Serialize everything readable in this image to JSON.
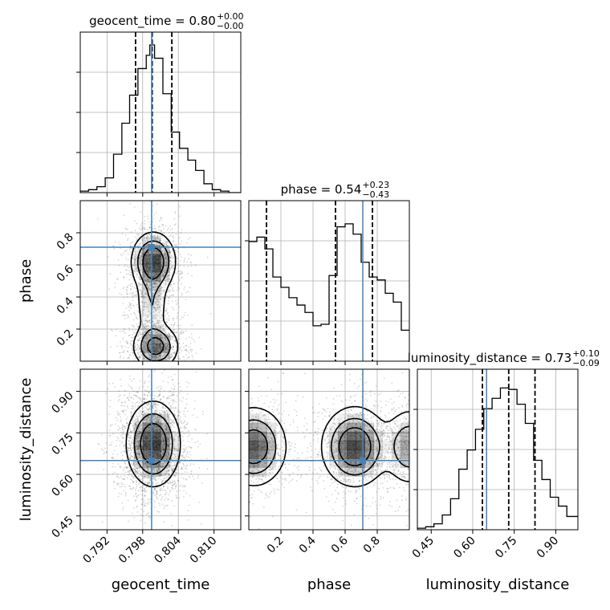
{
  "chart_data": {
    "type": "corner",
    "parameters": [
      "geocent_time",
      "phase",
      "luminosity_distance"
    ],
    "truths": {
      "geocent_time": 0.7995,
      "phase": 0.71,
      "luminosity_distance": 0.65
    },
    "titles": [
      {
        "param": "geocent_time",
        "text": "geocent_time = 0.80",
        "plus": "+0.00",
        "minus": "−0.00"
      },
      {
        "param": "phase",
        "text": "phase = 0.54",
        "plus": "+0.23",
        "minus": "−0.43"
      },
      {
        "param": "luminosity_distance",
        "text": "luminosity_distance = 0.73",
        "plus": "+0.10",
        "minus": "−0.09"
      }
    ],
    "axes": {
      "geocent_time": {
        "range": [
          0.7875,
          0.8145
        ],
        "ticks": [
          0.792,
          0.798,
          0.804,
          0.81
        ],
        "tick_labels": [
          "0.792",
          "0.798",
          "0.804",
          "0.810"
        ]
      },
      "phase": {
        "range": [
          0.0,
          1.0
        ],
        "ticks": [
          0.2,
          0.4,
          0.6,
          0.8
        ],
        "tick_labels": [
          "0.2",
          "0.4",
          "0.6",
          "0.8"
        ]
      },
      "luminosity_distance": {
        "range": [
          0.4,
          0.98
        ],
        "ticks": [
          0.45,
          0.6,
          0.75,
          0.9
        ],
        "tick_labels": [
          "0.45",
          "0.60",
          "0.75",
          "0.90"
        ]
      }
    },
    "histograms": {
      "geocent_time": {
        "edges": [
          0.7875,
          0.7889,
          0.7903,
          0.7917,
          0.7931,
          0.7945,
          0.7958,
          0.7972,
          0.7986,
          0.7992,
          0.8,
          0.8014,
          0.8028,
          0.8042,
          0.8056,
          0.8069,
          0.8083,
          0.8097,
          0.8111,
          0.8125,
          0.8145
        ],
        "counts": [
          0.01,
          0.02,
          0.04,
          0.1,
          0.26,
          0.47,
          0.66,
          0.84,
          0.93,
          1.0,
          0.91,
          0.67,
          0.41,
          0.3,
          0.22,
          0.15,
          0.06,
          0.02,
          0.01,
          0.0
        ],
        "quantiles": [
          0.7968,
          0.7996,
          0.8029
        ]
      },
      "phase": {
        "edges": [
          0.0,
          0.05,
          0.1,
          0.15,
          0.2,
          0.25,
          0.3,
          0.35,
          0.4,
          0.45,
          0.5,
          0.55,
          0.6,
          0.65,
          0.7,
          0.75,
          0.8,
          0.85,
          0.9,
          0.95,
          1.0
        ],
        "counts": [
          0.81,
          0.84,
          0.76,
          0.57,
          0.5,
          0.43,
          0.38,
          0.33,
          0.24,
          0.25,
          0.58,
          0.91,
          0.93,
          0.86,
          0.67,
          0.57,
          0.55,
          0.46,
          0.4,
          0.21
        ],
        "quantiles": [
          0.11,
          0.54,
          0.77
        ]
      },
      "luminosity_distance": {
        "edges": [
          0.4,
          0.43,
          0.46,
          0.49,
          0.52,
          0.55,
          0.58,
          0.61,
          0.64,
          0.67,
          0.7,
          0.73,
          0.76,
          0.79,
          0.82,
          0.85,
          0.88,
          0.91,
          0.94,
          0.98
        ],
        "counts": [
          0.01,
          0.02,
          0.04,
          0.1,
          0.21,
          0.41,
          0.54,
          0.68,
          0.82,
          0.89,
          0.96,
          0.95,
          0.85,
          0.72,
          0.47,
          0.34,
          0.22,
          0.16,
          0.09
        ],
        "quantiles": [
          0.635,
          0.73,
          0.825
        ]
      }
    },
    "density_2d": [
      {
        "x": "geocent_time",
        "y": "phase",
        "modes": [
          {
            "x": 0.7998,
            "y": 0.62,
            "sx": 0.0018,
            "sy": 0.09,
            "w": 1.0
          },
          {
            "x": 0.8002,
            "y": 0.09,
            "sx": 0.0019,
            "sy": 0.07,
            "w": 0.8
          },
          {
            "x": 0.7995,
            "y": 0.36,
            "sx": 0.0014,
            "sy": 0.12,
            "w": 0.35
          }
        ]
      },
      {
        "x": "geocent_time",
        "y": "luminosity_distance",
        "modes": [
          {
            "x": 0.7998,
            "y": 0.71,
            "sx": 0.0022,
            "sy": 0.075,
            "w": 1.0
          }
        ]
      },
      {
        "x": "phase",
        "y": "luminosity_distance",
        "modes": [
          {
            "x": 0.66,
            "y": 0.7,
            "sx": 0.1,
            "sy": 0.07,
            "w": 1.0
          },
          {
            "x": 0.03,
            "y": 0.7,
            "sx": 0.1,
            "sy": 0.07,
            "w": 0.9
          },
          {
            "x": 1.0,
            "y": 0.7,
            "sx": 0.08,
            "sy": 0.07,
            "w": 0.6
          }
        ]
      }
    ],
    "colors": {
      "truth": "#4682b4",
      "hist": "#000000",
      "grid": "#b0b0b0"
    }
  }
}
